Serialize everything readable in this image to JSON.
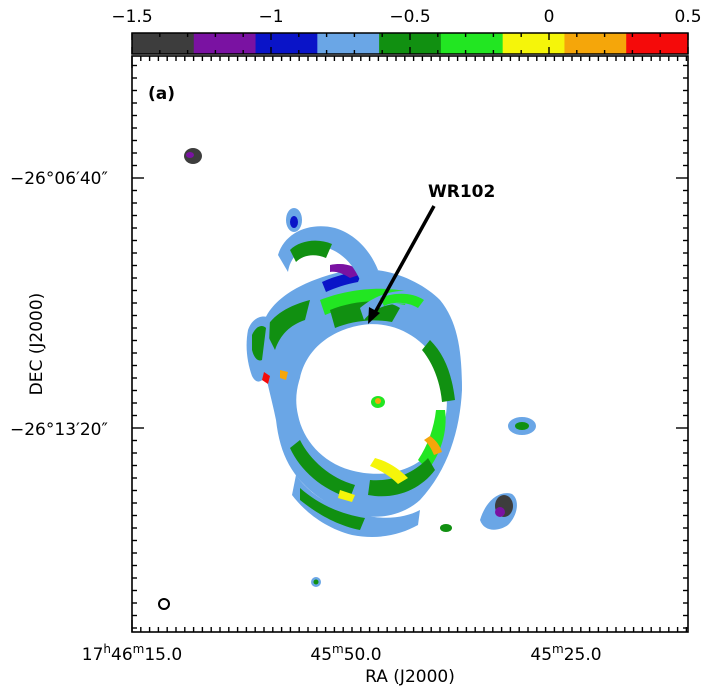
{
  "chart_data": {
    "type": "heatmap",
    "panel_label": "(a)",
    "xlabel": "RA (J2000)",
    "ylabel": "DEC (J2000)",
    "x_ticks": [
      {
        "h": "17",
        "m": "46",
        "s": "15.0",
        "pre": "17",
        "sup_h": "h",
        "mid": "46",
        "sup_m": "m",
        "post": "15.0"
      },
      {
        "h": "",
        "m": "45",
        "s": "50.0",
        "pre": "",
        "sup_h": "",
        "mid": "45",
        "sup_m": "m",
        "post": "50.0"
      },
      {
        "h": "",
        "m": "45",
        "s": "25.0",
        "pre": "",
        "sup_h": "",
        "mid": "45",
        "sup_m": "m",
        "post": "25.0"
      }
    ],
    "y_ticks": [
      "−26°06′40″",
      "−26°13′20″"
    ],
    "colorbar": {
      "min": -1.5,
      "max": 0.5,
      "tick_values": [
        -1.5,
        -1,
        -0.5,
        0,
        0.5
      ],
      "tick_labels": [
        "−1.5",
        "−1",
        "−0.5",
        "0",
        "0.5"
      ],
      "colors": [
        "#3d3d3d",
        "#7a12a2",
        "#0a14c8",
        "#6aa6e6",
        "#119011",
        "#22e622",
        "#f5f50a",
        "#f5a60a",
        "#f50a0a"
      ]
    },
    "annotations": [
      {
        "text": "WR102",
        "points_to": "nebula ring (north)"
      }
    ],
    "beam": "open circle (lower left)"
  }
}
